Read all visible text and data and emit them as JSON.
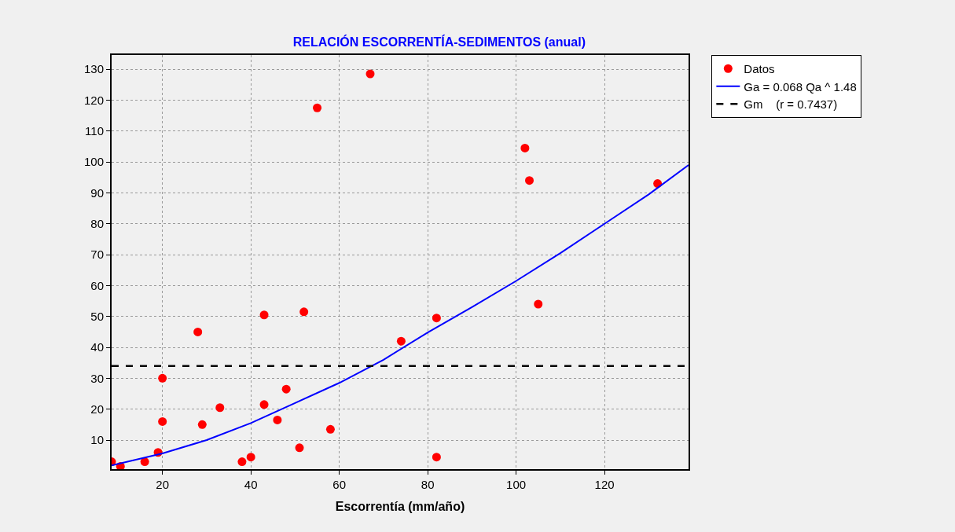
{
  "chart_data": {
    "type": "scatter",
    "title": "RELACIÓN ESCORRENTÍA-SEDIMENTOS (anual)",
    "xlabel": "Escorrentía (mm/año)",
    "xlim": [
      8.5,
      139
    ],
    "xticks": [
      20,
      40,
      60,
      80,
      100,
      120
    ],
    "ylim": [
      0.6,
      134.6
    ],
    "yticks": [
      10,
      20,
      30,
      40,
      50,
      60,
      70,
      80,
      90,
      100,
      110,
      120,
      130
    ],
    "grid": true,
    "legend": "top right",
    "series": [
      {
        "name": "Datos",
        "marker": "circle",
        "color": "#ff0000",
        "x": [
          8.5,
          10.5,
          16,
          19,
          20,
          20,
          28,
          29,
          33,
          38,
          40,
          43,
          43,
          46,
          48,
          51,
          52,
          55,
          58,
          67,
          74,
          82,
          82,
          102,
          103,
          105,
          132
        ],
        "values": [
          3,
          1.5,
          3,
          6,
          30,
          16,
          45,
          15,
          20.5,
          3,
          4.5,
          50.5,
          21.5,
          16.5,
          26.5,
          7.5,
          51.5,
          117.5,
          13.5,
          128.5,
          42,
          49.5,
          4.5,
          104.5,
          94,
          54,
          93
        ]
      },
      {
        "name": "Ga = 0.068 Qa ^ 1.48",
        "type": "line",
        "marker": "none",
        "line_style": "solid",
        "color": "#0000ff",
        "x": [
          8.5,
          20,
          30,
          40,
          50,
          60,
          70,
          80,
          90,
          100,
          110,
          120,
          130,
          139
        ],
        "values": [
          1.8,
          5.7,
          10,
          15.5,
          22,
          28.5,
          36,
          44.8,
          53,
          61.5,
          70.5,
          80,
          89.5,
          99
        ]
      },
      {
        "name": "Gm    (r = 0.7437)",
        "type": "line",
        "marker": "none",
        "line_style": "dashed",
        "color": "#000000",
        "x": [
          8.5,
          139
        ],
        "values": [
          34,
          34
        ]
      }
    ]
  }
}
